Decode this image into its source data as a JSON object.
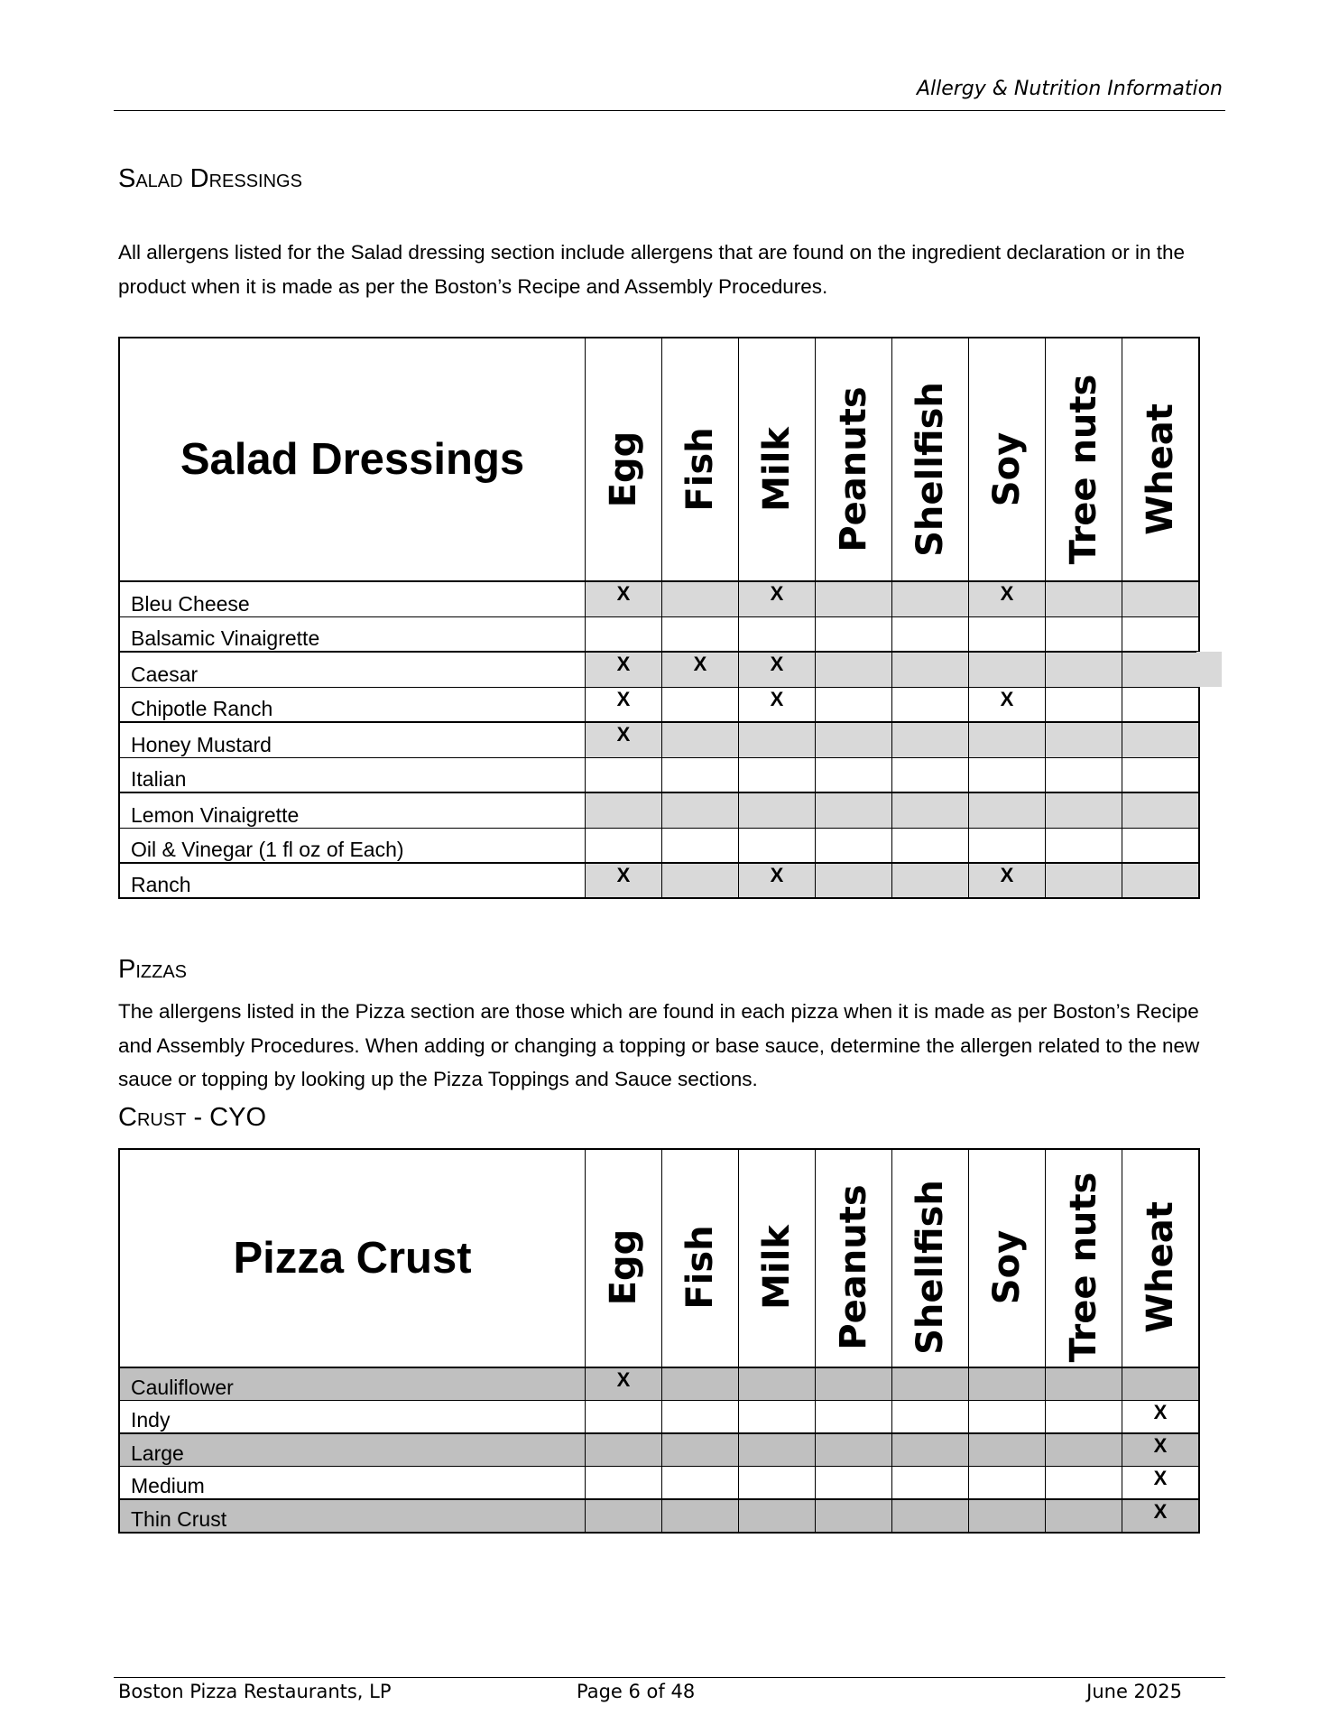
{
  "header": {
    "title": "Allergy & Nutrition Information"
  },
  "salad": {
    "heading": "Salad Dressings",
    "intro": "All allergens listed for the Salad dressing section include allergens that are found on the ingredient declaration or in the product when it is made as per the Boston’s Recipe and Assembly Procedures.",
    "table_title": "Salad Dressings",
    "columns": [
      "Egg",
      "Fish",
      "Milk",
      "Peanuts",
      "Shellfish",
      "Soy",
      "Tree nuts",
      "Wheat"
    ],
    "shade_color": "#d9d9d9",
    "rows": [
      {
        "name": "Bleu Cheese",
        "marks": [
          "X",
          "",
          "X",
          "",
          "",
          "X",
          "",
          ""
        ],
        "shaded": true
      },
      {
        "name": "Balsamic Vinaigrette",
        "marks": [
          "",
          "",
          "",
          "",
          "",
          "",
          "",
          ""
        ],
        "shaded": false
      },
      {
        "name": "Caesar",
        "marks": [
          "X",
          "X",
          "X",
          "",
          "",
          "",
          "",
          ""
        ],
        "shaded": true
      },
      {
        "name": "Chipotle Ranch",
        "marks": [
          "X",
          "",
          "X",
          "",
          "",
          "X",
          "",
          ""
        ],
        "shaded": false
      },
      {
        "name": "Honey Mustard",
        "marks": [
          "X",
          "",
          "",
          "",
          "",
          "",
          "",
          ""
        ],
        "shaded": true
      },
      {
        "name": "Italian",
        "marks": [
          "",
          "",
          "",
          "",
          "",
          "",
          "",
          ""
        ],
        "shaded": false
      },
      {
        "name": "Lemon Vinaigrette",
        "marks": [
          "",
          "",
          "",
          "",
          "",
          "",
          "",
          ""
        ],
        "shaded": true
      },
      {
        "name": "Oil & Vinegar (1 fl oz of Each)",
        "marks": [
          "",
          "",
          "",
          "",
          "",
          "",
          "",
          ""
        ],
        "shaded": false
      },
      {
        "name": "Ranch",
        "marks": [
          "X",
          "",
          "X",
          "",
          "",
          "X",
          "",
          ""
        ],
        "shaded": true
      }
    ]
  },
  "pizzas": {
    "heading": "Pizzas",
    "intro": "The allergens listed in the Pizza section are those which are found in each pizza when it is made as per Boston’s Recipe and Assembly Procedures. When adding or changing a topping or base sauce, determine the allergen related to the new sauce or topping by looking up the Pizza Toppings and Sauce sections.",
    "subheading": "Crust - CYO",
    "table_title": "Pizza Crust",
    "columns": [
      "Egg",
      "Fish",
      "Milk",
      "Peanuts",
      "Shellfish",
      "Soy",
      "Tree nuts",
      "Wheat"
    ],
    "shade_color": "#c0c0c0",
    "rows": [
      {
        "name": "Cauliflower",
        "marks": [
          "X",
          "",
          "",
          "",
          "",
          "",
          "",
          ""
        ],
        "shaded": true
      },
      {
        "name": "Indy",
        "marks": [
          "",
          "",
          "",
          "",
          "",
          "",
          "",
          "X"
        ],
        "shaded": false
      },
      {
        "name": "Large",
        "marks": [
          "",
          "",
          "",
          "",
          "",
          "",
          "",
          "X"
        ],
        "shaded": true
      },
      {
        "name": "Medium",
        "marks": [
          "",
          "",
          "",
          "",
          "",
          "",
          "",
          "X"
        ],
        "shaded": false
      },
      {
        "name": "Thin Crust",
        "marks": [
          "",
          "",
          "",
          "",
          "",
          "",
          "",
          "X"
        ],
        "shaded": true
      }
    ]
  },
  "footer": {
    "company": "Boston Pizza Restaurants, LP",
    "page": "Page 6 of 48",
    "date": "June 2025"
  }
}
